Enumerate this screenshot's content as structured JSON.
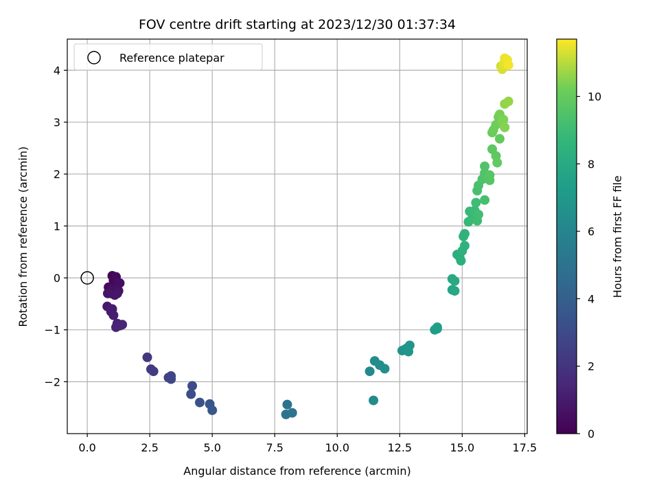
{
  "chart_data": {
    "type": "scatter",
    "title": "FOV centre drift starting at 2023/12/30 01:37:34",
    "xlabel": "Angular distance from reference (arcmin)",
    "ylabel": "Rotation from reference (arcmin)",
    "xlim": [
      -0.8,
      17.6
    ],
    "ylim": [
      -3.0,
      4.6
    ],
    "xticks": [
      0.0,
      2.5,
      5.0,
      7.5,
      10.0,
      12.5,
      15.0,
      17.5
    ],
    "xtick_labels": [
      "0.0",
      "2.5",
      "5.0",
      "7.5",
      "10.0",
      "12.5",
      "15.0",
      "17.5"
    ],
    "yticks": [
      -2,
      -1,
      0,
      1,
      2,
      3,
      4
    ],
    "ytick_labels": [
      "−2",
      "−1",
      "0",
      "1",
      "2",
      "3",
      "4"
    ],
    "grid": true,
    "legend": {
      "position": "top-left",
      "entries": [
        "Reference platepar"
      ]
    },
    "reference_point": {
      "x": 0.0,
      "y": 0.0,
      "label": "Reference platepar"
    },
    "colorbar": {
      "label": "Hours from first FF file",
      "colormap": "viridis",
      "range": [
        0,
        11.7
      ],
      "ticks": [
        0,
        2,
        4,
        6,
        8,
        10
      ],
      "tick_labels": [
        "0",
        "2",
        "4",
        "6",
        "8",
        "10"
      ]
    },
    "points": [
      {
        "x": 1.0,
        "y": 0.04,
        "c": 0.1
      },
      {
        "x": 1.05,
        "y": -0.05,
        "c": 0.2
      },
      {
        "x": 1.15,
        "y": 0.02,
        "c": 0.3
      },
      {
        "x": 0.85,
        "y": -0.18,
        "c": 0.35
      },
      {
        "x": 1.2,
        "y": -0.08,
        "c": 0.4
      },
      {
        "x": 1.3,
        "y": -0.1,
        "c": 0.5
      },
      {
        "x": 1.0,
        "y": -0.22,
        "c": 0.55
      },
      {
        "x": 0.95,
        "y": -0.3,
        "c": 0.6
      },
      {
        "x": 1.25,
        "y": -0.25,
        "c": 0.65
      },
      {
        "x": 1.1,
        "y": -0.33,
        "c": 0.7
      },
      {
        "x": 0.82,
        "y": -0.3,
        "c": 0.75
      },
      {
        "x": 1.2,
        "y": -0.3,
        "c": 0.8
      },
      {
        "x": 0.8,
        "y": -0.55,
        "c": 0.9
      },
      {
        "x": 1.0,
        "y": -0.6,
        "c": 1.0
      },
      {
        "x": 0.95,
        "y": -0.65,
        "c": 1.05
      },
      {
        "x": 1.05,
        "y": -0.72,
        "c": 1.1
      },
      {
        "x": 1.2,
        "y": -0.88,
        "c": 1.2
      },
      {
        "x": 1.15,
        "y": -0.95,
        "c": 1.3
      },
      {
        "x": 1.3,
        "y": -0.92,
        "c": 1.35
      },
      {
        "x": 1.4,
        "y": -0.9,
        "c": 1.4
      },
      {
        "x": 2.4,
        "y": -1.53,
        "c": 2.1
      },
      {
        "x": 2.55,
        "y": -1.76,
        "c": 2.2
      },
      {
        "x": 2.65,
        "y": -1.8,
        "c": 2.3
      },
      {
        "x": 3.25,
        "y": -1.92,
        "c": 2.6
      },
      {
        "x": 3.35,
        "y": -1.89,
        "c": 2.7
      },
      {
        "x": 3.35,
        "y": -1.95,
        "c": 2.75
      },
      {
        "x": 4.2,
        "y": -2.08,
        "c": 3.0
      },
      {
        "x": 4.15,
        "y": -2.24,
        "c": 3.1
      },
      {
        "x": 4.5,
        "y": -2.4,
        "c": 3.3
      },
      {
        "x": 4.9,
        "y": -2.43,
        "c": 3.5
      },
      {
        "x": 5.0,
        "y": -2.55,
        "c": 3.6
      },
      {
        "x": 8.0,
        "y": -2.44,
        "c": 5.0
      },
      {
        "x": 7.95,
        "y": -2.63,
        "c": 5.05
      },
      {
        "x": 8.2,
        "y": -2.6,
        "c": 5.1
      },
      {
        "x": 11.3,
        "y": -1.8,
        "c": 6.2
      },
      {
        "x": 11.45,
        "y": -2.36,
        "c": 6.3
      },
      {
        "x": 11.5,
        "y": -1.6,
        "c": 6.4
      },
      {
        "x": 11.7,
        "y": -1.68,
        "c": 6.45
      },
      {
        "x": 11.9,
        "y": -1.75,
        "c": 6.5
      },
      {
        "x": 12.6,
        "y": -1.4,
        "c": 6.7
      },
      {
        "x": 12.7,
        "y": -1.38,
        "c": 6.75
      },
      {
        "x": 12.8,
        "y": -1.35,
        "c": 6.8
      },
      {
        "x": 12.9,
        "y": -1.3,
        "c": 6.85
      },
      {
        "x": 12.85,
        "y": -1.42,
        "c": 6.9
      },
      {
        "x": 13.9,
        "y": -1.0,
        "c": 7.3
      },
      {
        "x": 14.0,
        "y": -0.95,
        "c": 7.35
      },
      {
        "x": 14.0,
        "y": -0.98,
        "c": 7.4
      },
      {
        "x": 14.6,
        "y": -0.23,
        "c": 7.8
      },
      {
        "x": 14.7,
        "y": -0.25,
        "c": 7.85
      },
      {
        "x": 14.6,
        "y": -0.02,
        "c": 7.9
      },
      {
        "x": 14.7,
        "y": -0.06,
        "c": 7.95
      },
      {
        "x": 14.8,
        "y": 0.45,
        "c": 8.2
      },
      {
        "x": 14.9,
        "y": 0.4,
        "c": 8.25
      },
      {
        "x": 14.95,
        "y": 0.33,
        "c": 8.3
      },
      {
        "x": 15.0,
        "y": 0.52,
        "c": 8.35
      },
      {
        "x": 15.1,
        "y": 0.62,
        "c": 8.4
      },
      {
        "x": 15.05,
        "y": 0.8,
        "c": 8.45
      },
      {
        "x": 15.1,
        "y": 0.85,
        "c": 8.5
      },
      {
        "x": 15.25,
        "y": 1.08,
        "c": 8.8
      },
      {
        "x": 15.3,
        "y": 1.28,
        "c": 8.85
      },
      {
        "x": 15.4,
        "y": 1.15,
        "c": 8.9
      },
      {
        "x": 15.5,
        "y": 1.3,
        "c": 8.95
      },
      {
        "x": 15.55,
        "y": 1.45,
        "c": 9.0
      },
      {
        "x": 15.6,
        "y": 1.1,
        "c": 9.05
      },
      {
        "x": 15.65,
        "y": 1.22,
        "c": 9.1
      },
      {
        "x": 15.9,
        "y": 1.5,
        "c": 9.2
      },
      {
        "x": 15.6,
        "y": 1.68,
        "c": 9.3
      },
      {
        "x": 15.65,
        "y": 1.78,
        "c": 9.35
      },
      {
        "x": 15.8,
        "y": 1.9,
        "c": 9.4
      },
      {
        "x": 15.9,
        "y": 2.02,
        "c": 9.45
      },
      {
        "x": 15.9,
        "y": 2.15,
        "c": 9.5
      },
      {
        "x": 16.0,
        "y": 1.95,
        "c": 9.55
      },
      {
        "x": 16.1,
        "y": 1.88,
        "c": 9.6
      },
      {
        "x": 16.1,
        "y": 1.98,
        "c": 9.65
      },
      {
        "x": 16.2,
        "y": 2.48,
        "c": 9.8
      },
      {
        "x": 16.35,
        "y": 2.35,
        "c": 9.85
      },
      {
        "x": 16.4,
        "y": 2.22,
        "c": 9.9
      },
      {
        "x": 16.5,
        "y": 2.68,
        "c": 9.95
      },
      {
        "x": 16.2,
        "y": 2.8,
        "c": 10.1
      },
      {
        "x": 16.25,
        "y": 2.85,
        "c": 10.15
      },
      {
        "x": 16.35,
        "y": 2.95,
        "c": 10.2
      },
      {
        "x": 16.45,
        "y": 3.1,
        "c": 10.25
      },
      {
        "x": 16.5,
        "y": 3.15,
        "c": 10.3
      },
      {
        "x": 16.6,
        "y": 3.0,
        "c": 10.35
      },
      {
        "x": 16.65,
        "y": 3.05,
        "c": 10.4
      },
      {
        "x": 16.7,
        "y": 2.9,
        "c": 10.45
      },
      {
        "x": 16.7,
        "y": 3.35,
        "c": 10.6
      },
      {
        "x": 16.85,
        "y": 3.4,
        "c": 10.65
      },
      {
        "x": 16.55,
        "y": 4.08,
        "c": 11.2
      },
      {
        "x": 16.6,
        "y": 4.02,
        "c": 11.3
      },
      {
        "x": 16.65,
        "y": 4.12,
        "c": 11.4
      },
      {
        "x": 16.7,
        "y": 4.23,
        "c": 11.5
      },
      {
        "x": 16.8,
        "y": 4.2,
        "c": 11.55
      },
      {
        "x": 16.85,
        "y": 4.1,
        "c": 11.6
      }
    ]
  }
}
